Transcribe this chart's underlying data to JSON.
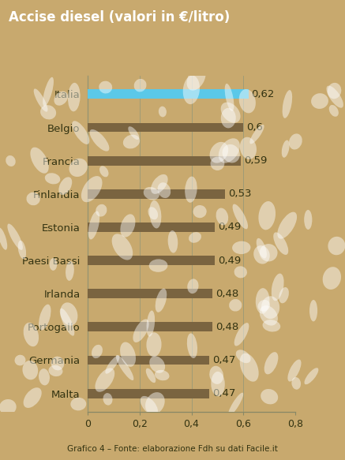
{
  "title": "Accise diesel (valori in €/litro)",
  "categories": [
    "Malta",
    "Germania",
    "Portogallo",
    "Irlanda",
    "Paesi Bassi",
    "Estonia",
    "Finlandia",
    "Francia",
    "Belgio",
    "Italia"
  ],
  "values": [
    0.47,
    0.47,
    0.48,
    0.48,
    0.49,
    0.49,
    0.53,
    0.59,
    0.6,
    0.62
  ],
  "labels": [
    "0,47",
    "0,47",
    "0,48",
    "0,48",
    "0,49",
    "0,49",
    "0,53",
    "0,59",
    "0,6",
    "0,62"
  ],
  "bar_colors": [
    "#7A6440",
    "#7A6440",
    "#7A6440",
    "#7A6440",
    "#7A6440",
    "#7A6440",
    "#7A6440",
    "#7A6440",
    "#7A6440",
    "#5BC8E8"
  ],
  "background_color": "#C8A96E",
  "bg_light_color": "#D4B87A",
  "title_bg_color": "#111111",
  "title_text_color": "#FFFFFF",
  "xlim": [
    0,
    0.8
  ],
  "xticks": [
    0,
    0.2,
    0.4,
    0.6,
    0.8
  ],
  "xtick_labels": [
    "0",
    "0,2",
    "0,4",
    "0,6",
    "0,8"
  ],
  "footer": "Grafico 4 – Fonte: elaborazione Fdh su dati Facile.it",
  "bar_height": 0.28,
  "label_fontsize": 9.5,
  "tick_fontsize": 9,
  "title_fontsize": 12,
  "cat_fontsize": 9.5,
  "footer_fontsize": 7.5,
  "grid_color": "#999977",
  "spine_color": "#888866",
  "text_color": "#333311",
  "value_label_color": "#333311"
}
